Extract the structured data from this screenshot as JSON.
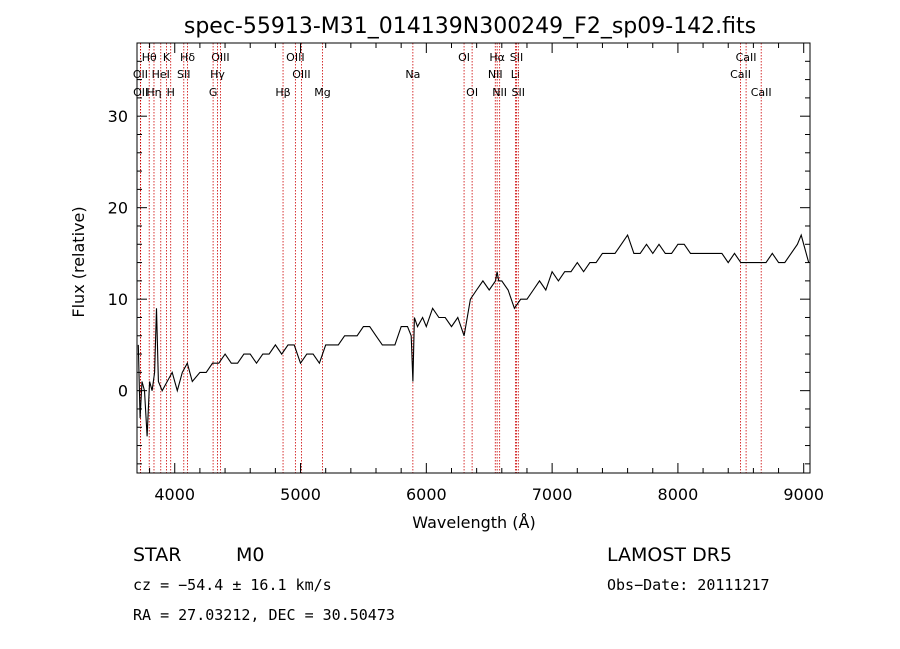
{
  "chart_data": {
    "type": "line",
    "title": "spec-55913-M31_014139N300249_F2_sp09-142.fits",
    "xlabel": "Wavelength (Å)",
    "ylabel": "Flux (relative)",
    "xlim": [
      3700,
      9050
    ],
    "ylim": [
      -9,
      38
    ],
    "x_ticks": [
      4000,
      5000,
      6000,
      7000,
      8000,
      9000
    ],
    "y_ticks": [
      0,
      10,
      20,
      30
    ],
    "grid": false,
    "legend": "none",
    "line_color": "#000000",
    "marker_color": "#cc0000",
    "spectral_lines": [
      {
        "label": "Hθ",
        "x": 3797,
        "row": 1
      },
      {
        "label": "K",
        "x": 3934,
        "row": 1
      },
      {
        "label": "Hδ",
        "x": 4102,
        "row": 1
      },
      {
        "label": "OIII",
        "x": 4363,
        "row": 1
      },
      {
        "label": "OIII",
        "x": 4959,
        "row": 1
      },
      {
        "label": "OI",
        "x": 6300,
        "row": 1
      },
      {
        "label": "Hα",
        "x": 6563,
        "row": 1
      },
      {
        "label": "SII",
        "x": 6717,
        "row": 1
      },
      {
        "label": "CaII",
        "x": 8542,
        "row": 1
      },
      {
        "label": "OII",
        "x": 3727,
        "row": 2
      },
      {
        "label": "HeI",
        "x": 3889,
        "row": 2
      },
      {
        "label": "SII",
        "x": 4072,
        "row": 2
      },
      {
        "label": "Hγ",
        "x": 4340,
        "row": 2
      },
      {
        "label": "OIII",
        "x": 5007,
        "row": 2
      },
      {
        "label": "Na",
        "x": 5893,
        "row": 2
      },
      {
        "label": "NII",
        "x": 6548,
        "row": 2
      },
      {
        "label": "Li",
        "x": 6708,
        "row": 2
      },
      {
        "label": "CaII",
        "x": 8498,
        "row": 2
      },
      {
        "label": "OII",
        "x": 3729,
        "row": 3
      },
      {
        "label": "Hη",
        "x": 3835,
        "row": 3
      },
      {
        "label": "H",
        "x": 3968,
        "row": 3
      },
      {
        "label": "G",
        "x": 4305,
        "row": 3
      },
      {
        "label": "Hβ",
        "x": 4861,
        "row": 3
      },
      {
        "label": "Mg",
        "x": 5175,
        "row": 3
      },
      {
        "label": "OI",
        "x": 6364,
        "row": 3
      },
      {
        "label": "NII",
        "x": 6583,
        "row": 3
      },
      {
        "label": "SII",
        "x": 6731,
        "row": 3
      },
      {
        "label": "CaII",
        "x": 8662,
        "row": 3
      }
    ],
    "series": [
      {
        "x": [
          3710,
          3725,
          3740,
          3760,
          3780,
          3800,
          3820,
          3840,
          3855,
          3870,
          3900,
          3940,
          3980,
          4020,
          4060,
          4100,
          4140,
          4200,
          4250,
          4300,
          4350,
          4400,
          4450,
          4500,
          4550,
          4600,
          4650,
          4700,
          4750,
          4800,
          4850,
          4900,
          4950,
          5000,
          5050,
          5100,
          5150,
          5200,
          5250,
          5300,
          5350,
          5400,
          5450,
          5500,
          5550,
          5600,
          5650,
          5700,
          5750,
          5800,
          5850,
          5880,
          5893,
          5905,
          5930,
          5970,
          6000,
          6050,
          6100,
          6150,
          6200,
          6250,
          6300,
          6350,
          6400,
          6450,
          6500,
          6550,
          6563,
          6575,
          6600,
          6650,
          6700,
          6750,
          6800,
          6850,
          6900,
          6950,
          7000,
          7050,
          7100,
          7150,
          7200,
          7250,
          7300,
          7350,
          7400,
          7450,
          7500,
          7550,
          7600,
          7650,
          7700,
          7750,
          7800,
          7850,
          7900,
          7950,
          8000,
          8050,
          8100,
          8150,
          8200,
          8250,
          8300,
          8350,
          8400,
          8450,
          8500,
          8550,
          8600,
          8650,
          8700,
          8750,
          8800,
          8850,
          8900,
          8950,
          8980,
          9000,
          9020,
          9040
        ],
        "y": [
          5,
          -3,
          1,
          0,
          -5,
          1,
          0,
          2,
          9,
          1,
          0,
          1,
          2,
          0,
          2,
          3,
          1,
          2,
          2,
          3,
          3,
          4,
          3,
          3,
          4,
          4,
          3,
          4,
          4,
          5,
          4,
          5,
          5,
          3,
          4,
          4,
          3,
          5,
          5,
          5,
          6,
          6,
          6,
          7,
          7,
          6,
          5,
          5,
          5,
          7,
          7,
          6,
          1,
          8,
          7,
          8,
          7,
          9,
          8,
          8,
          7,
          8,
          6,
          10,
          11,
          12,
          11,
          12,
          13,
          12,
          12,
          11,
          9,
          10,
          10,
          11,
          12,
          11,
          13,
          12,
          13,
          13,
          14,
          13,
          14,
          14,
          15,
          15,
          15,
          16,
          17,
          15,
          15,
          16,
          15,
          16,
          15,
          15,
          16,
          16,
          15,
          15,
          15,
          15,
          15,
          15,
          14,
          15,
          14,
          14,
          14,
          14,
          14,
          15,
          14,
          14,
          15,
          16,
          17,
          16,
          15,
          14
        ]
      }
    ]
  },
  "footer": {
    "object_class": "STAR",
    "subclass": "M0",
    "survey": "LAMOST  DR5",
    "velocity": "cz = −54.4 ± 16.1 km/s",
    "obs_date": "Obs−Date: 20111217",
    "coords": "RA =  27.03212, DEC =  30.50473"
  }
}
